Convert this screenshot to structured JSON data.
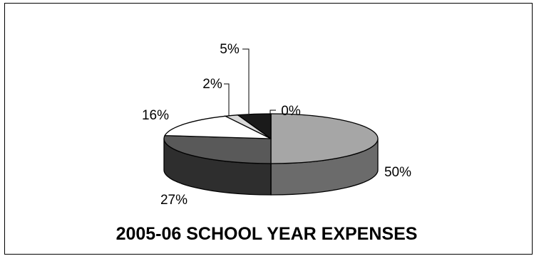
{
  "chart_data": {
    "type": "pie",
    "title": "2005-06 SCHOOL YEAR EXPENSES",
    "slices": [
      {
        "label": "50%",
        "value": 50,
        "color": "#a6a6a6",
        "side_color": "#6b6b6b"
      },
      {
        "label": "27%",
        "value": 27,
        "color": "#595959",
        "side_color": "#2e2e2e"
      },
      {
        "label": "16%",
        "value": 16,
        "color": "#ffffff",
        "side_color": "#cfcfcf"
      },
      {
        "label": "2%",
        "value": 2,
        "color": "#d9d9d9",
        "side_color": "#9a9a9a"
      },
      {
        "label": "5%",
        "value": 5,
        "color": "#1a1a1a",
        "side_color": "#000000"
      },
      {
        "label": "0%",
        "value": 0,
        "color": "#808080",
        "side_color": "#555555"
      }
    ],
    "style": "3d-pie",
    "legend": "none"
  }
}
